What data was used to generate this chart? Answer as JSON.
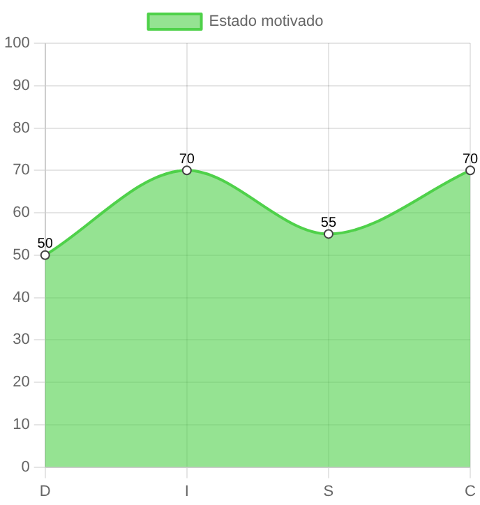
{
  "chart_data": {
    "type": "area",
    "categories": [
      "D",
      "I",
      "S",
      "C"
    ],
    "series": [
      {
        "name": "Estado motivado",
        "color": "#4fd14a",
        "values": [
          50,
          70,
          55,
          70
        ]
      }
    ],
    "ylim": [
      0,
      100
    ],
    "yticks": [
      0,
      10,
      20,
      30,
      40,
      50,
      60,
      70,
      80,
      90,
      100
    ],
    "grid": true,
    "legend": "top",
    "data_labels": true,
    "marker": "circle"
  }
}
